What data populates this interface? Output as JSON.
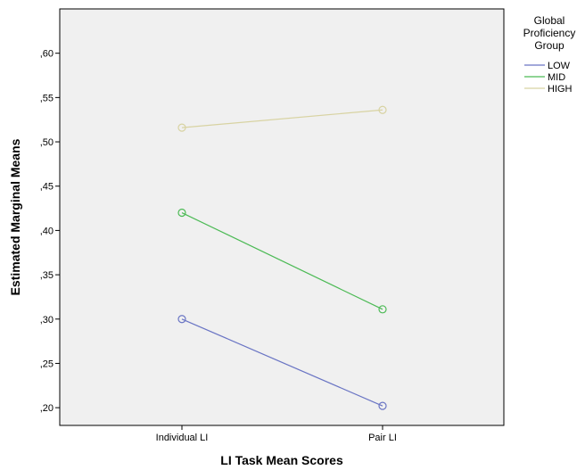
{
  "chart_data": {
    "type": "line",
    "xlabel": "LI Task Mean Scores",
    "ylabel": "Estimated Marginal Means",
    "categories": [
      "Individual LI",
      "Pair LI"
    ],
    "ylim": [
      0.18,
      0.65
    ],
    "yticks": [
      ",20",
      ",25",
      ",30",
      ",35",
      ",40",
      ",45",
      ",50",
      ",55",
      ",60"
    ],
    "ytick_values": [
      0.2,
      0.25,
      0.3,
      0.35,
      0.4,
      0.45,
      0.5,
      0.55,
      0.6
    ],
    "grid": false,
    "legend": {
      "title_lines": [
        "Global",
        "Proficiency",
        "Group"
      ],
      "placement": "right"
    },
    "series": [
      {
        "name": "LOW",
        "values": [
          0.3,
          0.202
        ],
        "color": "#6a75c4"
      },
      {
        "name": "MID",
        "values": [
          0.42,
          0.311
        ],
        "color": "#4cba55"
      },
      {
        "name": "HIGH",
        "values": [
          0.516,
          0.536
        ],
        "color": "#d8d3a2"
      }
    ],
    "plot_background": "#f0f0f0"
  }
}
